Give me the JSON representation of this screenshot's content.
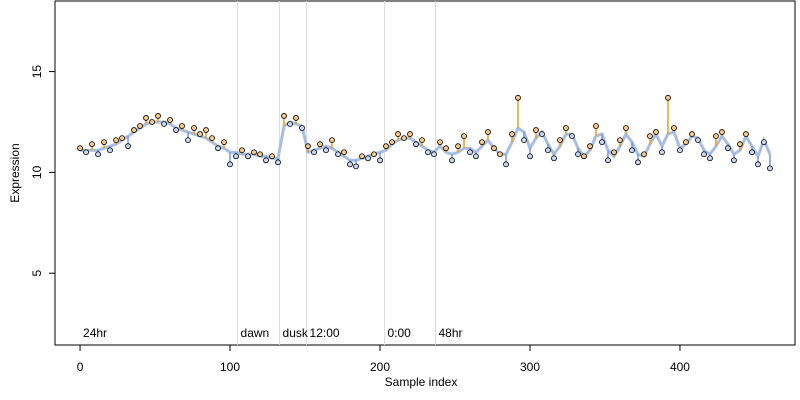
{
  "chart_data": {
    "type": "scatter",
    "x_label": "Sample index",
    "y_label": "Expression",
    "xlim": [
      -16.7,
      476.7
    ],
    "ylim": [
      1.44,
      18.5
    ],
    "xticks": [
      0,
      100,
      200,
      300,
      400
    ],
    "yticks": [
      5,
      10,
      15
    ],
    "vlines": [
      105,
      133,
      151,
      203,
      237
    ],
    "annotations": [
      {
        "x": 0,
        "label": "24hr"
      },
      {
        "x": 105,
        "label": "dawn"
      },
      {
        "x": 133,
        "label": "dusk"
      },
      {
        "x": 151,
        "label": "12:00"
      },
      {
        "x": 203,
        "label": "0:00"
      },
      {
        "x": 237,
        "label": "48hr"
      }
    ],
    "fit_color": "#a8bde0",
    "above_color": "#e8a020",
    "below_color": "#6f9be0",
    "point_above_color": "#f5c98a",
    "point_below_color": "#c9d8f2",
    "x": [
      0,
      4,
      8,
      12,
      16,
      20,
      24,
      28,
      32,
      36,
      40,
      44,
      48,
      52,
      56,
      60,
      64,
      68,
      72,
      76,
      80,
      84,
      88,
      92,
      96,
      100,
      104,
      108,
      112,
      116,
      120,
      124,
      128,
      132,
      136,
      140,
      144,
      148,
      152,
      156,
      160,
      164,
      168,
      172,
      176,
      180,
      184,
      188,
      192,
      196,
      200,
      204,
      208,
      212,
      216,
      220,
      224,
      228,
      232,
      236,
      240,
      244,
      248,
      252,
      256,
      260,
      264,
      268,
      272,
      276,
      280,
      284,
      288,
      292,
      296,
      300,
      304,
      308,
      312,
      316,
      320,
      324,
      328,
      332,
      336,
      340,
      344,
      348,
      352,
      356,
      360,
      364,
      368,
      372,
      376,
      380,
      384,
      388,
      392,
      396,
      400,
      404,
      408,
      412,
      416,
      420,
      424,
      428,
      432,
      436,
      440,
      444,
      448,
      452,
      456,
      460
    ],
    "observed": [
      11.2,
      11.0,
      11.4,
      10.9,
      11.5,
      11.1,
      11.6,
      11.7,
      11.3,
      12.1,
      12.3,
      12.7,
      12.5,
      12.8,
      12.4,
      12.6,
      12.1,
      12.3,
      11.6,
      12.2,
      11.9,
      12.1,
      11.7,
      11.2,
      11.5,
      10.4,
      10.8,
      11.1,
      10.8,
      11.0,
      10.9,
      10.6,
      10.8,
      10.5,
      12.8,
      12.4,
      12.7,
      12.2,
      11.3,
      11.0,
      11.4,
      11.1,
      11.6,
      10.9,
      11.0,
      10.4,
      10.3,
      10.8,
      10.7,
      10.9,
      10.6,
      11.3,
      11.5,
      11.9,
      11.7,
      11.9,
      11.4,
      11.6,
      11.0,
      10.9,
      11.5,
      11.2,
      10.6,
      11.3,
      11.8,
      11.0,
      10.8,
      11.5,
      12.0,
      11.2,
      10.9,
      10.4,
      11.9,
      13.7,
      11.6,
      10.8,
      12.1,
      11.9,
      11.1,
      10.7,
      11.6,
      12.2,
      11.8,
      10.9,
      10.8,
      11.3,
      12.3,
      11.5,
      10.6,
      11.0,
      11.6,
      12.2,
      11.1,
      10.5,
      10.9,
      11.8,
      12.0,
      11.0,
      13.7,
      12.2,
      11.1,
      11.5,
      11.9,
      11.6,
      10.9,
      10.7,
      11.8,
      12.0,
      11.2,
      10.6,
      11.4,
      11.9,
      11.0,
      10.4,
      11.5,
      10.2
    ],
    "fitted": [
      11.1,
      11.1,
      11.1,
      11.1,
      11.2,
      11.3,
      11.4,
      11.6,
      11.8,
      12.0,
      12.2,
      12.4,
      12.5,
      12.5,
      12.5,
      12.4,
      12.2,
      12.1,
      12.0,
      11.9,
      11.8,
      11.7,
      11.5,
      11.3,
      11.2,
      11.0,
      11.0,
      10.9,
      10.9,
      10.9,
      10.8,
      10.8,
      10.7,
      10.7,
      12.3,
      12.5,
      12.4,
      12.3,
      11.0,
      11.1,
      11.2,
      11.3,
      11.2,
      11.0,
      10.8,
      10.6,
      10.6,
      10.7,
      10.8,
      10.9,
      11.0,
      11.1,
      11.4,
      11.6,
      11.7,
      11.7,
      11.5,
      11.3,
      11.1,
      11.0,
      11.3,
      11.0,
      10.9,
      11.0,
      11.2,
      11.2,
      11.0,
      11.3,
      11.6,
      11.2,
      10.9,
      10.9,
      11.5,
      12.2,
      12.0,
      11.2,
      11.7,
      12.0,
      11.4,
      10.9,
      11.3,
      11.9,
      11.9,
      11.2,
      10.8,
      11.1,
      11.8,
      11.9,
      11.1,
      10.8,
      11.3,
      11.9,
      11.5,
      10.9,
      10.8,
      11.4,
      11.9,
      11.3,
      11.9,
      12.0,
      11.2,
      11.4,
      11.8,
      11.7,
      11.1,
      10.9,
      11.3,
      11.8,
      11.4,
      10.9,
      11.1,
      11.8,
      11.3,
      10.8,
      11.6,
      10.9
    ]
  }
}
